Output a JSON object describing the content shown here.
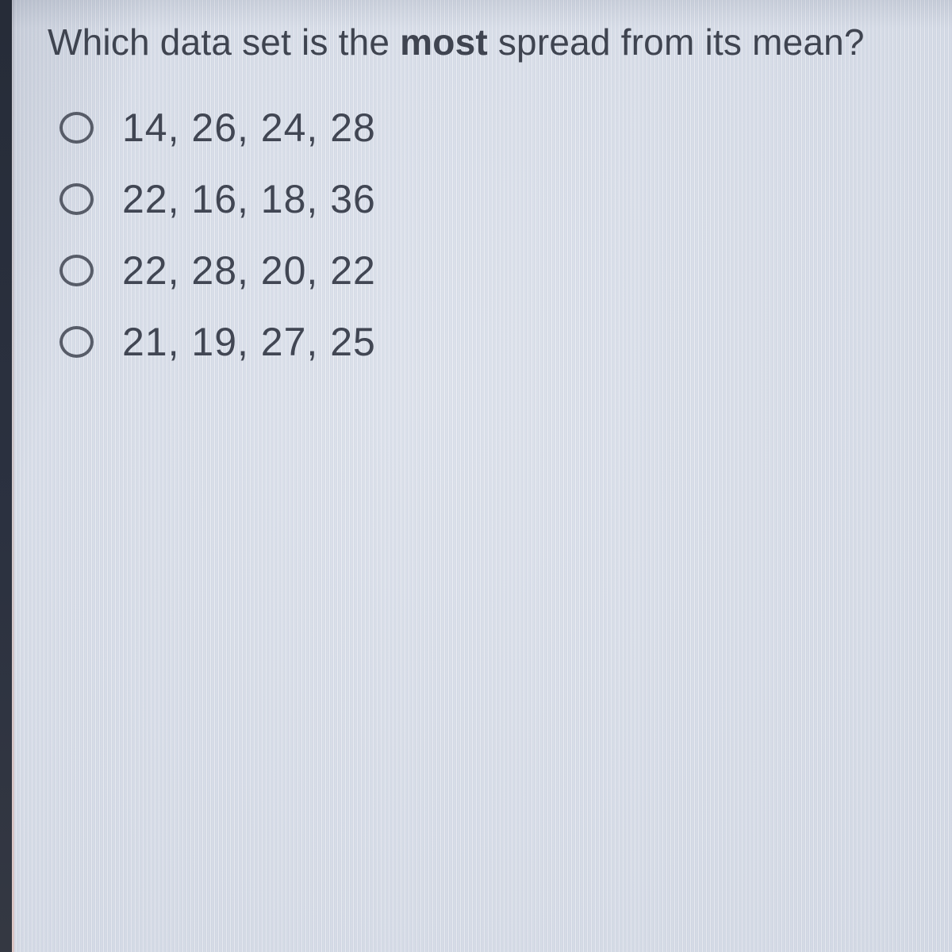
{
  "question": {
    "prefix": "Which data set is the ",
    "bold": "most",
    "suffix": " spread from its mean?"
  },
  "options": [
    {
      "label": "14, 26, 24, 28",
      "selected": false
    },
    {
      "label": "22, 16, 18, 36",
      "selected": false
    },
    {
      "label": "22, 28, 20, 22",
      "selected": false
    },
    {
      "label": "21, 19, 27, 25",
      "selected": false
    }
  ],
  "colors": {
    "screen_background": "#d6dbe7",
    "text": "#3f4450",
    "bezel": "#2a303d",
    "radio_ring": "#575c68"
  }
}
